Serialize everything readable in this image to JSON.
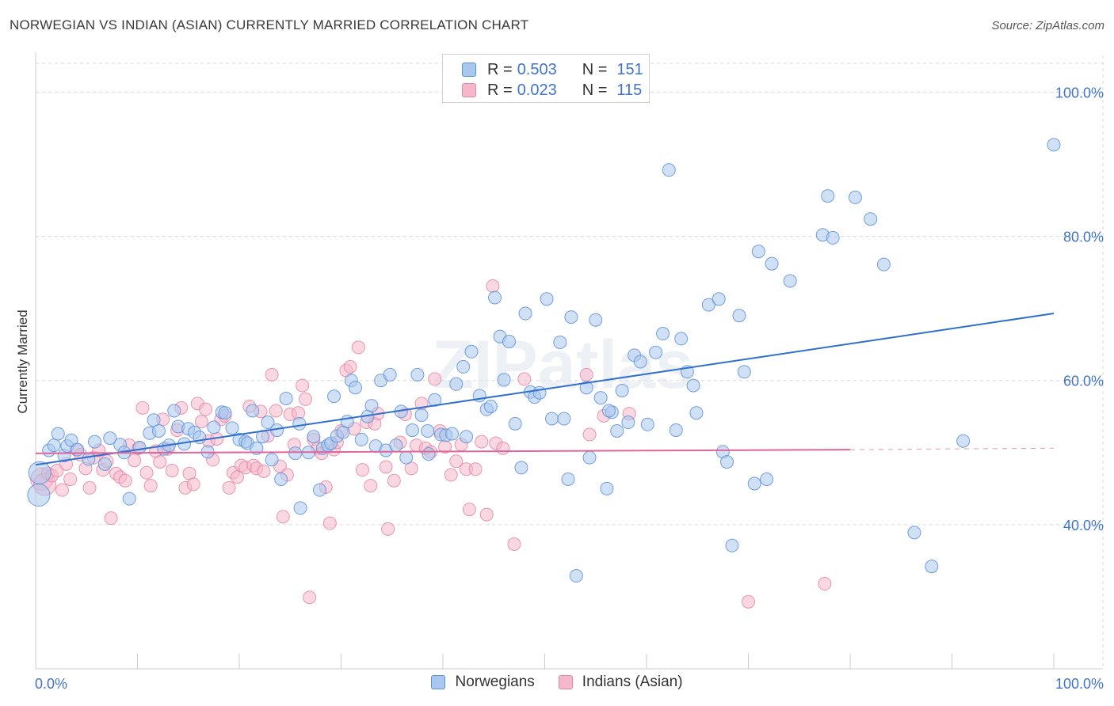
{
  "header": {
    "title": "NORWEGIAN VS INDIAN (ASIAN) CURRENTLY MARRIED CORRELATION CHART",
    "source": "Source: ZipAtlas.com"
  },
  "watermark": "ZIPatlas",
  "colors": {
    "blue_fill": "#aac8ef",
    "blue_stroke": "#5b8fd9",
    "blue_line": "#2f6fd0",
    "pink_fill": "#f5b8cb",
    "pink_stroke": "#e585a6",
    "pink_line": "#e0669a",
    "value_text": "#3f74c9",
    "grid": "#d8d8d8"
  },
  "legend": {
    "rows": [
      {
        "r_label": "R = ",
        "r_value": "0.503",
        "n_label": "N = ",
        "n_value": "151"
      },
      {
        "r_label": "R = ",
        "r_value": "0.023",
        "n_label": "N = ",
        "n_value": "115"
      }
    ]
  },
  "chart_data": {
    "type": "scatter",
    "title": "NORWEGIAN VS INDIAN (ASIAN) CURRENTLY MARRIED CORRELATION CHART",
    "xlabel": "",
    "ylabel": "Currently Married",
    "xlim": [
      0,
      100
    ],
    "ylim": [
      20,
      104
    ],
    "x_tick_labels": [
      "0.0%",
      "100.0%"
    ],
    "y_ticks": [
      40,
      60,
      80,
      100
    ],
    "y_tick_labels": [
      "40.0%",
      "60.0%",
      "80.0%",
      "100.0%"
    ],
    "grid": true,
    "legend_position": "top-center",
    "series": [
      {
        "name": "Norwegians",
        "r": 0.503,
        "n": 151,
        "trend": {
          "x": [
            0,
            100
          ],
          "y": [
            48.3,
            69.3
          ],
          "dashed_from": null
        },
        "points": [
          [
            0.3,
            44.1
          ],
          [
            0.4,
            47.2
          ],
          [
            1.3,
            50.3
          ],
          [
            1.8,
            51.0
          ],
          [
            2.2,
            52.6
          ],
          [
            2.8,
            49.6
          ],
          [
            3.1,
            50.9
          ],
          [
            3.5,
            51.7
          ],
          [
            4.1,
            50.4
          ],
          [
            5.2,
            49.1
          ],
          [
            5.8,
            51.5
          ],
          [
            6.8,
            48.4
          ],
          [
            7.3,
            52.0
          ],
          [
            8.3,
            51.1
          ],
          [
            8.7,
            50.0
          ],
          [
            9.2,
            43.6
          ],
          [
            10.2,
            50.7
          ],
          [
            11.2,
            52.7
          ],
          [
            11.6,
            54.5
          ],
          [
            12.1,
            53.0
          ],
          [
            12.6,
            50.5
          ],
          [
            13.1,
            51.0
          ],
          [
            13.6,
            55.8
          ],
          [
            14.0,
            53.6
          ],
          [
            14.6,
            51.2
          ],
          [
            15.0,
            53.3
          ],
          [
            15.6,
            52.8
          ],
          [
            16.1,
            52.1
          ],
          [
            16.9,
            50.1
          ],
          [
            17.5,
            53.5
          ],
          [
            18.3,
            55.6
          ],
          [
            18.6,
            55.5
          ],
          [
            19.3,
            53.4
          ],
          [
            20.0,
            51.8
          ],
          [
            20.6,
            51.5
          ],
          [
            20.8,
            51.3
          ],
          [
            21.3,
            55.8
          ],
          [
            21.7,
            50.6
          ],
          [
            22.3,
            52.2
          ],
          [
            22.8,
            54.2
          ],
          [
            23.2,
            49.0
          ],
          [
            23.7,
            53.1
          ],
          [
            24.1,
            46.3
          ],
          [
            24.6,
            57.5
          ],
          [
            25.5,
            49.9
          ],
          [
            25.9,
            54.0
          ],
          [
            26.0,
            42.3
          ],
          [
            26.8,
            50.0
          ],
          [
            27.3,
            52.2
          ],
          [
            27.9,
            44.8
          ],
          [
            28.2,
            50.6
          ],
          [
            28.7,
            51.0
          ],
          [
            29.0,
            51.3
          ],
          [
            29.3,
            57.8
          ],
          [
            29.6,
            52.3
          ],
          [
            30.2,
            52.8
          ],
          [
            30.6,
            54.3
          ],
          [
            31.0,
            60.0
          ],
          [
            31.4,
            59.0
          ],
          [
            32.0,
            51.8
          ],
          [
            32.6,
            55.0
          ],
          [
            33.0,
            56.5
          ],
          [
            33.4,
            50.9
          ],
          [
            33.9,
            60.0
          ],
          [
            34.4,
            50.3
          ],
          [
            34.8,
            60.8
          ],
          [
            35.4,
            51.0
          ],
          [
            35.9,
            55.7
          ],
          [
            36.4,
            49.3
          ],
          [
            37.0,
            53.1
          ],
          [
            37.5,
            60.8
          ],
          [
            37.9,
            55.2
          ],
          [
            38.5,
            53.0
          ],
          [
            38.6,
            49.8
          ],
          [
            39.2,
            57.3
          ],
          [
            39.8,
            52.5
          ],
          [
            40.3,
            52.4
          ],
          [
            40.9,
            52.6
          ],
          [
            41.3,
            59.5
          ],
          [
            42.0,
            61.9
          ],
          [
            42.3,
            52.2
          ],
          [
            42.8,
            64.0
          ],
          [
            43.6,
            57.9
          ],
          [
            44.3,
            56.0
          ],
          [
            44.7,
            56.4
          ],
          [
            45.1,
            71.5
          ],
          [
            45.6,
            66.1
          ],
          [
            46.0,
            60.1
          ],
          [
            46.5,
            65.4
          ],
          [
            47.1,
            54.0
          ],
          [
            47.7,
            47.9
          ],
          [
            48.1,
            69.3
          ],
          [
            48.6,
            58.4
          ],
          [
            49.0,
            57.7
          ],
          [
            49.5,
            58.3
          ],
          [
            50.2,
            71.3
          ],
          [
            50.7,
            54.7
          ],
          [
            51.5,
            65.3
          ],
          [
            51.9,
            54.7
          ],
          [
            52.3,
            46.3
          ],
          [
            52.6,
            68.8
          ],
          [
            53.1,
            32.9
          ],
          [
            54.1,
            59.0
          ],
          [
            54.4,
            49.3
          ],
          [
            55.0,
            68.4
          ],
          [
            55.5,
            57.6
          ],
          [
            56.1,
            45.0
          ],
          [
            56.6,
            55.6
          ],
          [
            56.3,
            55.8
          ],
          [
            57.1,
            53.0
          ],
          [
            57.6,
            58.6
          ],
          [
            58.2,
            54.2
          ],
          [
            58.8,
            63.5
          ],
          [
            59.4,
            62.6
          ],
          [
            60.1,
            53.9
          ],
          [
            60.9,
            63.9
          ],
          [
            61.6,
            66.5
          ],
          [
            62.2,
            89.2
          ],
          [
            62.9,
            53.1
          ],
          [
            63.4,
            65.8
          ],
          [
            64.0,
            61.2
          ],
          [
            64.6,
            59.3
          ],
          [
            64.9,
            55.5
          ],
          [
            66.1,
            70.5
          ],
          [
            67.1,
            71.3
          ],
          [
            67.5,
            50.1
          ],
          [
            67.9,
            48.7
          ],
          [
            68.4,
            37.1
          ],
          [
            69.1,
            69.0
          ],
          [
            69.6,
            61.2
          ],
          [
            70.6,
            45.7
          ],
          [
            71.0,
            77.9
          ],
          [
            71.8,
            46.3
          ],
          [
            72.3,
            76.2
          ],
          [
            74.1,
            73.8
          ],
          [
            77.3,
            80.2
          ],
          [
            77.8,
            85.6
          ],
          [
            78.3,
            79.8
          ],
          [
            80.5,
            85.4
          ],
          [
            82.0,
            82.4
          ],
          [
            83.3,
            76.1
          ],
          [
            86.3,
            38.9
          ],
          [
            88.0,
            34.2
          ],
          [
            91.1,
            51.6
          ],
          [
            100.0,
            92.7
          ]
        ]
      },
      {
        "name": "Indians (Asian)",
        "r": 0.023,
        "n": 115,
        "trend": {
          "x": [
            0,
            80,
            100
          ],
          "y": [
            49.9,
            50.4,
            50.6
          ],
          "dashed_from": 80
        },
        "points": [
          [
            0.6,
            46.3
          ],
          [
            0.9,
            45.6
          ],
          [
            1.2,
            47.1
          ],
          [
            1.6,
            46.8
          ],
          [
            2.1,
            47.5
          ],
          [
            2.6,
            44.8
          ],
          [
            3.0,
            48.4
          ],
          [
            3.4,
            46.3
          ],
          [
            4.0,
            50.4
          ],
          [
            4.4,
            49.7
          ],
          [
            4.9,
            47.8
          ],
          [
            5.3,
            45.1
          ],
          [
            5.7,
            49.3
          ],
          [
            6.2,
            50.3
          ],
          [
            6.6,
            47.6
          ],
          [
            7.0,
            48.8
          ],
          [
            7.4,
            40.9
          ],
          [
            7.9,
            47.1
          ],
          [
            8.3,
            46.6
          ],
          [
            8.8,
            46.1
          ],
          [
            9.2,
            51.0
          ],
          [
            9.7,
            48.9
          ],
          [
            10.1,
            50.6
          ],
          [
            10.5,
            56.2
          ],
          [
            10.9,
            47.2
          ],
          [
            11.3,
            45.4
          ],
          [
            11.8,
            50.2
          ],
          [
            12.2,
            48.7
          ],
          [
            12.5,
            54.6
          ],
          [
            13.0,
            50.5
          ],
          [
            13.4,
            47.5
          ],
          [
            13.9,
            53.1
          ],
          [
            14.3,
            56.2
          ],
          [
            14.7,
            45.1
          ],
          [
            15.1,
            47.1
          ],
          [
            15.5,
            45.6
          ],
          [
            15.9,
            56.8
          ],
          [
            16.3,
            54.3
          ],
          [
            16.7,
            56.0
          ],
          [
            17.0,
            51.6
          ],
          [
            17.4,
            49.0
          ],
          [
            17.8,
            51.9
          ],
          [
            18.2,
            54.6
          ],
          [
            18.6,
            55.1
          ],
          [
            19.0,
            45.1
          ],
          [
            19.4,
            47.2
          ],
          [
            19.8,
            46.6
          ],
          [
            20.2,
            48.2
          ],
          [
            20.6,
            47.9
          ],
          [
            21.0,
            56.4
          ],
          [
            21.4,
            48.2
          ],
          [
            21.7,
            47.8
          ],
          [
            22.1,
            55.7
          ],
          [
            22.4,
            47.4
          ],
          [
            22.8,
            52.3
          ],
          [
            23.2,
            60.8
          ],
          [
            23.6,
            55.8
          ],
          [
            24.0,
            48.1
          ],
          [
            24.3,
            41.1
          ],
          [
            24.7,
            46.9
          ],
          [
            25.0,
            55.3
          ],
          [
            25.4,
            51.1
          ],
          [
            25.8,
            55.5
          ],
          [
            26.2,
            59.3
          ],
          [
            26.5,
            57.4
          ],
          [
            26.9,
            29.9
          ],
          [
            27.3,
            51.8
          ],
          [
            27.7,
            50.6
          ],
          [
            28.1,
            49.9
          ],
          [
            28.5,
            45.2
          ],
          [
            28.9,
            40.2
          ],
          [
            29.3,
            50.4
          ],
          [
            29.6,
            51.4
          ],
          [
            30.0,
            53.0
          ],
          [
            30.5,
            61.4
          ],
          [
            30.9,
            61.9
          ],
          [
            31.3,
            53.3
          ],
          [
            31.7,
            64.6
          ],
          [
            32.1,
            47.6
          ],
          [
            32.5,
            54.2
          ],
          [
            32.9,
            45.4
          ],
          [
            33.3,
            54.0
          ],
          [
            33.6,
            55.4
          ],
          [
            34.4,
            48.0
          ],
          [
            34.6,
            39.4
          ],
          [
            35.2,
            46.1
          ],
          [
            35.8,
            51.4
          ],
          [
            36.3,
            55.3
          ],
          [
            36.9,
            47.8
          ],
          [
            37.4,
            51.0
          ],
          [
            37.9,
            56.8
          ],
          [
            38.3,
            50.6
          ],
          [
            38.8,
            50.1
          ],
          [
            39.2,
            60.2
          ],
          [
            39.7,
            53.0
          ],
          [
            40.2,
            50.8
          ],
          [
            40.8,
            46.9
          ],
          [
            41.3,
            48.8
          ],
          [
            41.8,
            51.1
          ],
          [
            42.3,
            47.7
          ],
          [
            42.6,
            42.1
          ],
          [
            43.2,
            47.7
          ],
          [
            43.8,
            51.5
          ],
          [
            44.3,
            41.4
          ],
          [
            44.9,
            73.1
          ],
          [
            45.2,
            51.3
          ],
          [
            45.9,
            50.6
          ],
          [
            47.0,
            37.3
          ],
          [
            48.0,
            60.2
          ],
          [
            54.1,
            60.8
          ],
          [
            54.4,
            52.5
          ],
          [
            55.8,
            55.1
          ],
          [
            58.3,
            55.4
          ],
          [
            70.0,
            29.3
          ],
          [
            77.5,
            31.8
          ]
        ]
      }
    ]
  }
}
